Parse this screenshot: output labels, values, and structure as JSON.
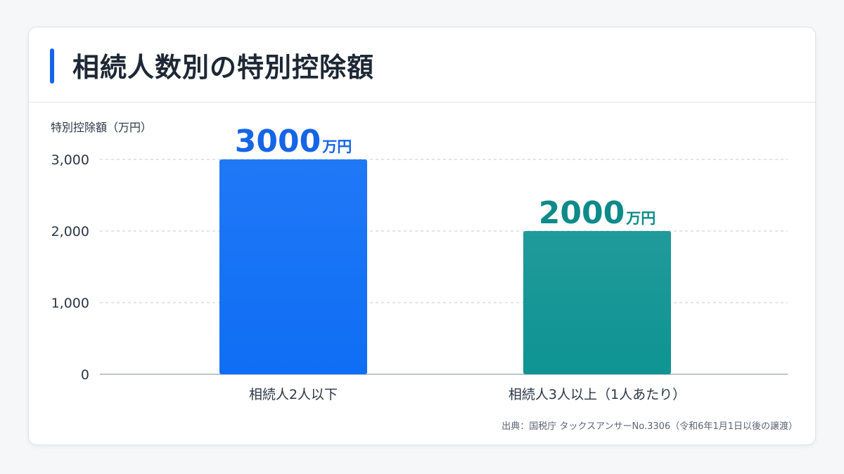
{
  "title": "相続人数別の特別控除額",
  "colors": {
    "accent": "#1565e8",
    "bar1": "#0f6ef5",
    "bar2": "#0f9393",
    "label1": "#1565e8",
    "label2": "#0e8a8a"
  },
  "source": "出典：国税庁 タックスアンサーNo.3306（令和6年1月1日以後の譲渡）",
  "chart_data": {
    "type": "bar",
    "ylabel": "特別控除額（万円）",
    "ylim": [
      0,
      3000
    ],
    "yticks": [
      0,
      1000,
      2000,
      3000
    ],
    "ytick_labels": [
      "0",
      "1,000",
      "2,000",
      "3,000"
    ],
    "grid": true,
    "categories": [
      "相続人2人以下",
      "相続人3人以上（1人あたり）"
    ],
    "values": [
      3000,
      2000
    ],
    "value_labels": [
      "3000",
      "2000"
    ],
    "value_unit": "万円"
  }
}
